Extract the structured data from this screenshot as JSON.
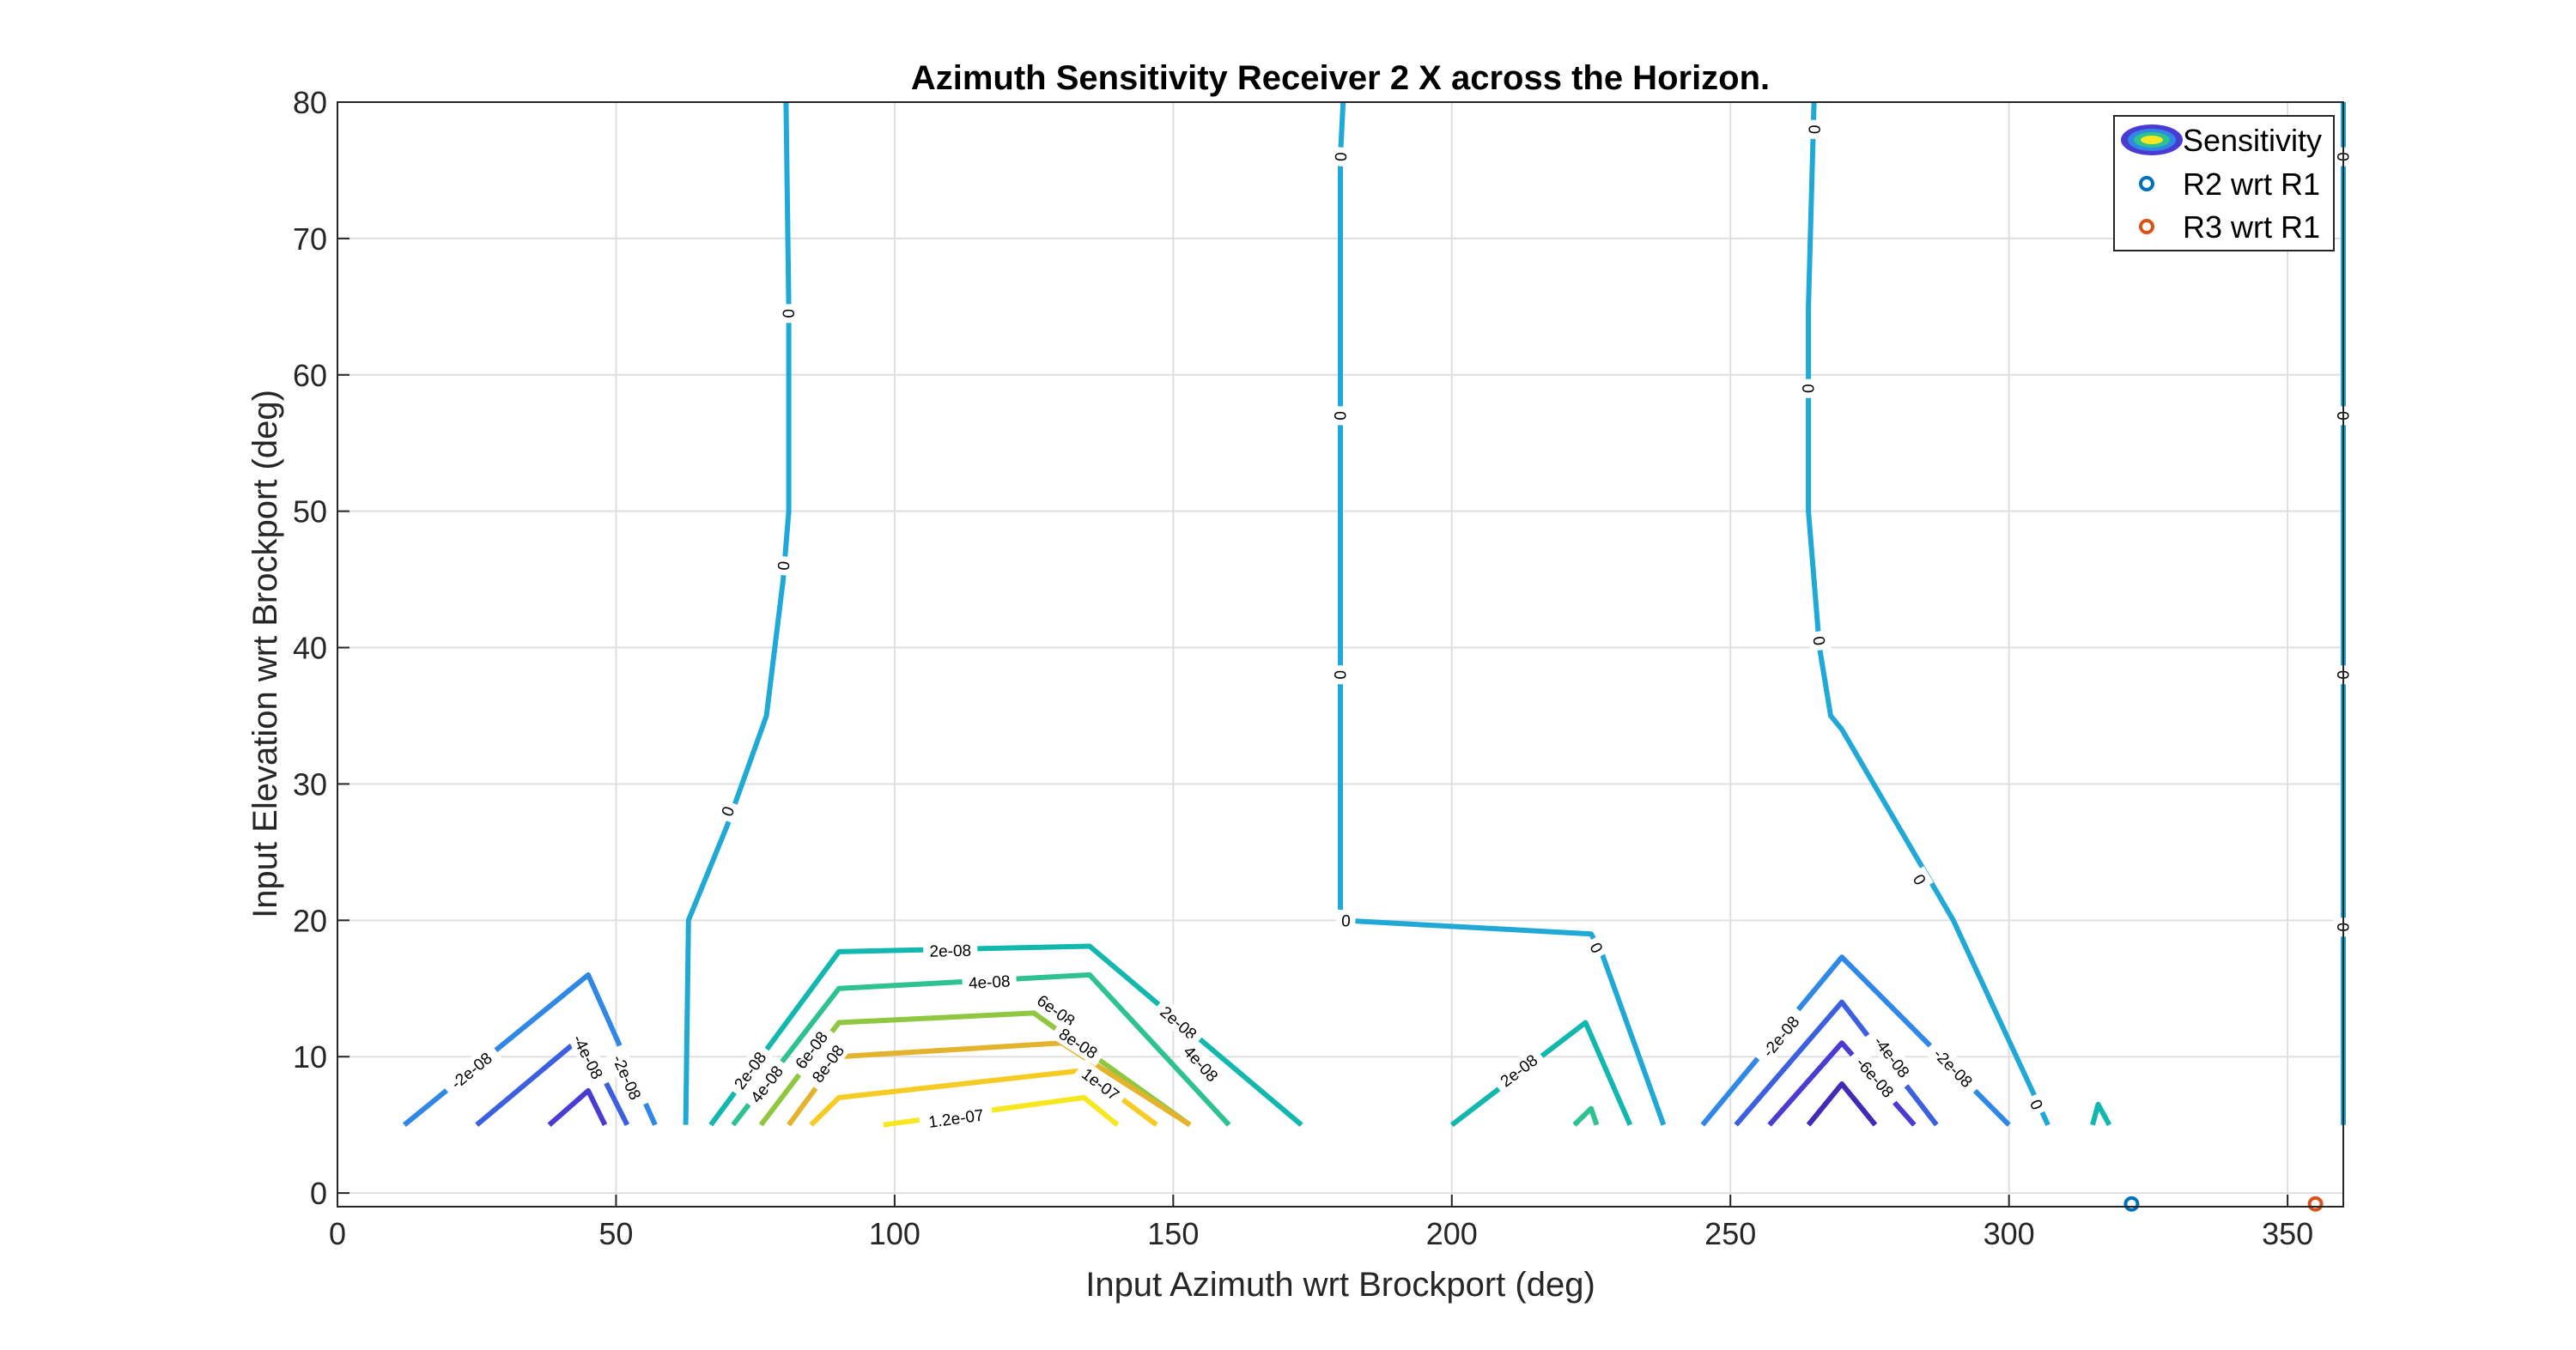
{
  "chart_data": {
    "type": "contour",
    "title": "Azimuth Sensitivity Receiver 2 X across the Horizon.",
    "xlabel": "Input Azimuth wrt Brockport (deg)",
    "ylabel": "Input Elevation wrt Brockport (deg)",
    "xlim": [
      0,
      360
    ],
    "ylim": [
      -1,
      80
    ],
    "xticks": [
      0,
      50,
      100,
      150,
      200,
      250,
      300,
      350
    ],
    "yticks": [
      0,
      10,
      20,
      30,
      40,
      50,
      60,
      70,
      80
    ],
    "grid": true,
    "legend_placement": "top-right",
    "legend": [
      {
        "label": "Sensitivity",
        "marker": "contour-ellipses"
      },
      {
        "label": "R2 wrt R1",
        "marker": "circle",
        "color": "#0072BD"
      },
      {
        "label": "R3 wrt R1",
        "marker": "circle",
        "color": "#D95319"
      }
    ],
    "contours": [
      {
        "level": 0,
        "label": "0",
        "color": "#20A9D6",
        "points": [
          [
            80.5,
            80
          ],
          [
            81,
            65
          ],
          [
            81,
            50
          ],
          [
            80,
            45
          ],
          [
            77,
            35
          ],
          [
            70,
            27
          ],
          [
            63,
            20
          ],
          [
            62.5,
            5
          ]
        ],
        "labels": [
          [
            81,
            64.5
          ],
          [
            80,
            46
          ],
          [
            70,
            28
          ]
        ]
      },
      {
        "level": 0,
        "label": "0",
        "color": "#20A9D6",
        "points": [
          [
            180.5,
            80
          ],
          [
            180,
            76
          ],
          [
            180,
            57
          ],
          [
            180,
            38
          ],
          [
            180,
            20
          ],
          [
            225,
            19
          ],
          [
            227,
            17.5
          ],
          [
            238,
            5
          ]
        ],
        "labels": [
          [
            180,
            76
          ],
          [
            180,
            57
          ],
          [
            180,
            38
          ],
          [
            181,
            20
          ],
          [
            226,
            18
          ]
        ]
      },
      {
        "level": 0,
        "label": "0",
        "color": "#20A9D6",
        "points": [
          [
            265,
            80
          ],
          [
            264,
            65
          ],
          [
            264,
            59
          ],
          [
            264,
            50
          ],
          [
            266,
            40
          ],
          [
            268,
            35
          ],
          [
            270,
            34
          ],
          [
            290,
            20
          ],
          [
            307,
            5
          ]
        ],
        "labels": [
          [
            265,
            78
          ],
          [
            264,
            59
          ],
          [
            266,
            40.5
          ],
          [
            284,
            23
          ],
          [
            305,
            6.5
          ]
        ]
      },
      {
        "level": 0,
        "label": "0",
        "color": "#20A9D6",
        "points": [
          [
            360,
            80
          ],
          [
            360,
            76
          ],
          [
            360,
            57
          ],
          [
            360,
            38
          ],
          [
            360,
            20
          ],
          [
            360,
            5
          ]
        ],
        "labels": [
          [
            360,
            76
          ],
          [
            360,
            57
          ],
          [
            360,
            38
          ],
          [
            360,
            19.5
          ]
        ]
      },
      {
        "level": -2e-08,
        "label": "-2e-08",
        "color": "#2F87E6",
        "points": [
          [
            12,
            5
          ],
          [
            45,
            16
          ],
          [
            57,
            5
          ]
        ],
        "labels": [
          [
            24,
            9
          ],
          [
            52,
            8.5
          ]
        ]
      },
      {
        "level": -4e-08,
        "label": "-4e-08",
        "color": "#3C5FE0",
        "points": [
          [
            25,
            5
          ],
          [
            44,
            11.5
          ],
          [
            52,
            5
          ]
        ],
        "labels": [
          [
            45,
            10
          ]
        ]
      },
      {
        "level": -6e-08,
        "label": "-6e-08",
        "color": "#4A3BD2",
        "points": [
          [
            38,
            5
          ],
          [
            45,
            7.5
          ],
          [
            48,
            5
          ]
        ],
        "labels": []
      },
      {
        "level": 2e-08,
        "label": "2e-08",
        "color": "#12B8AE",
        "points": [
          [
            67,
            5
          ],
          [
            90,
            17.7
          ],
          [
            135,
            18.1
          ],
          [
            173,
            5
          ]
        ],
        "labels": [
          [
            74,
            9
          ],
          [
            110,
            17.8
          ],
          [
            151,
            12.5
          ]
        ]
      },
      {
        "level": 4e-08,
        "label": "4e-08",
        "color": "#2EC290",
        "points": [
          [
            71,
            5
          ],
          [
            90,
            15
          ],
          [
            135,
            16
          ],
          [
            160,
            5
          ]
        ],
        "labels": [
          [
            77,
            8
          ],
          [
            117,
            15.5
          ],
          [
            155,
            9.5
          ]
        ]
      },
      {
        "level": 6e-08,
        "label": "6e-08",
        "color": "#8FC740",
        "points": [
          [
            76,
            5
          ],
          [
            90,
            12.5
          ],
          [
            125,
            13.2
          ],
          [
            153,
            5
          ]
        ],
        "labels": [
          [
            85,
            10.5
          ],
          [
            129,
            13.4
          ]
        ]
      },
      {
        "level": 8e-08,
        "label": "8e-08",
        "color": "#E3B32E",
        "points": [
          [
            81,
            5
          ],
          [
            90,
            10
          ],
          [
            130,
            11
          ],
          [
            153,
            5
          ]
        ],
        "labels": [
          [
            88,
            9.5
          ],
          [
            133,
            11
          ]
        ]
      },
      {
        "level": 1e-07,
        "label": "1e-07",
        "color": "#F6CB24",
        "points": [
          [
            85,
            5
          ],
          [
            90,
            7
          ],
          [
            134,
            9
          ],
          [
            147,
            5
          ]
        ],
        "labels": [
          [
            137,
            8
          ]
        ]
      },
      {
        "level": 1.2e-07,
        "label": "1.2e-07",
        "color": "#F6E71E",
        "points": [
          [
            98,
            5
          ],
          [
            134,
            7
          ],
          [
            140,
            5
          ]
        ],
        "labels": [
          [
            111,
            5.5
          ]
        ]
      },
      {
        "level": 2e-08,
        "label": "2e-08",
        "color": "#12B8AE",
        "points": [
          [
            200,
            5
          ],
          [
            224,
            12.5
          ],
          [
            232,
            5
          ]
        ],
        "labels": [
          [
            212,
            9
          ]
        ]
      },
      {
        "level": 4e-08,
        "label": "4e-08",
        "color": "#2EC290",
        "points": [
          [
            222,
            5
          ],
          [
            225,
            6.2
          ],
          [
            226,
            5
          ]
        ],
        "labels": []
      },
      {
        "level": 2e-08,
        "label": "2e-08",
        "color": "#12B8AE",
        "points": [
          [
            315,
            5
          ],
          [
            316,
            6.5
          ],
          [
            318,
            5
          ]
        ],
        "labels": []
      },
      {
        "level": -2e-08,
        "label": "-2e-08",
        "color": "#2F87E6",
        "points": [
          [
            245,
            5
          ],
          [
            270,
            17.3
          ],
          [
            300,
            5
          ]
        ],
        "labels": [
          [
            259,
            11.5
          ],
          [
            290,
            9.2
          ]
        ]
      },
      {
        "level": -4e-08,
        "label": "-4e-08",
        "color": "#3C5FE0",
        "points": [
          [
            251,
            5
          ],
          [
            270,
            14
          ],
          [
            287,
            5
          ]
        ],
        "labels": [
          [
            279,
            10
          ]
        ]
      },
      {
        "level": -6e-08,
        "label": "-6e-08",
        "color": "#4A3BD2",
        "points": [
          [
            257,
            5
          ],
          [
            270,
            11
          ],
          [
            283,
            5
          ]
        ],
        "labels": [
          [
            276,
            8.5
          ]
        ]
      },
      {
        "level": -8e-08,
        "label": "",
        "color": "#3F2BB5",
        "points": [
          [
            264,
            5
          ],
          [
            270,
            8
          ],
          [
            276,
            5
          ]
        ],
        "labels": []
      }
    ],
    "series": [
      {
        "name": "R2 wrt R1",
        "type": "scatter",
        "color": "#0072BD",
        "x": [
          322
        ],
        "y": [
          -0.8
        ]
      },
      {
        "name": "R3 wrt R1",
        "type": "scatter",
        "color": "#D95319",
        "x": [
          355
        ],
        "y": [
          -0.8
        ]
      }
    ]
  }
}
